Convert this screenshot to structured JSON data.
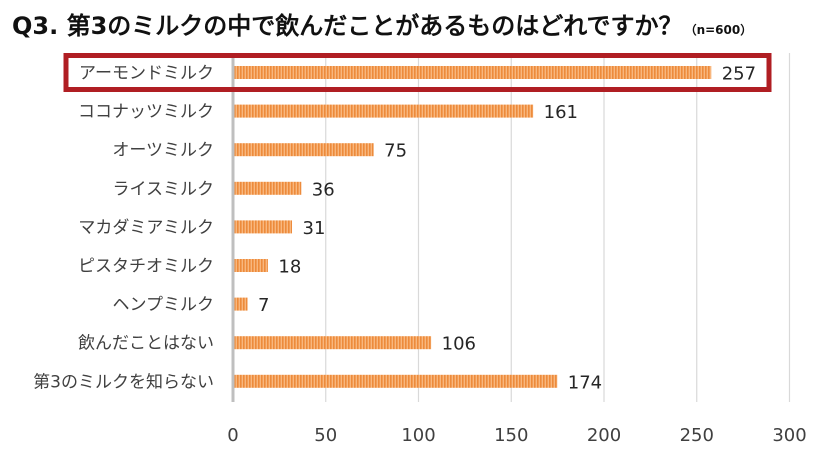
{
  "chart_data": {
    "type": "bar",
    "orientation": "horizontal",
    "title": "Q3. 第3のミルクの中で飲んだことがあるものはどれですか？",
    "subtitle": "（n=600）",
    "categories": [
      "アーモンドミルク",
      "ココナッツミルク",
      "オーツミルク",
      "ライスミルク",
      "マカダミアミルク",
      "ピスタチオミルク",
      "ヘンプミルク",
      "飲んだことはない",
      "第3のミルクを知らない"
    ],
    "values": [
      257,
      161,
      75,
      36,
      31,
      18,
      7,
      106,
      174
    ],
    "xlim": [
      0,
      300
    ],
    "xticks": [
      0,
      50,
      100,
      150,
      200,
      250,
      300
    ],
    "grid": true,
    "highlighted_category": "アーモンドミルク",
    "bar_color": "#F4A460",
    "bar_stripe_color": "#ED8B3B",
    "highlight_color": "#B01E23"
  }
}
